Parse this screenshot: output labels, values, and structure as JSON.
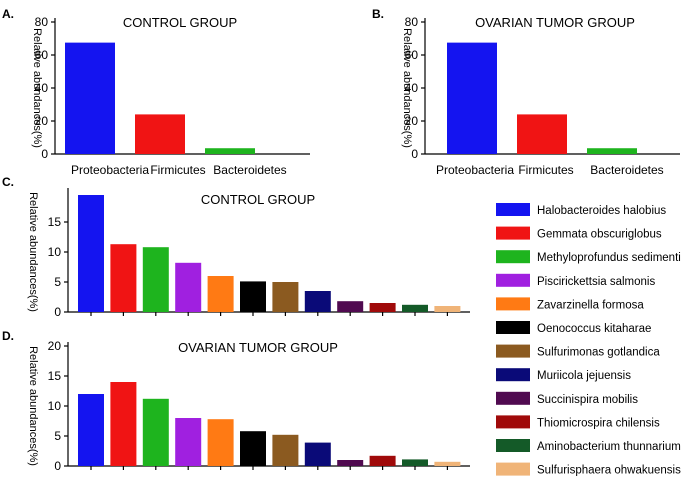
{
  "chart_data": [
    {
      "panel": "A.",
      "type": "bar",
      "title": "CONTROL GROUP",
      "ylabel": "Relative abundances(%)",
      "ylim": [
        0,
        80
      ],
      "yticks": [
        0,
        20,
        40,
        60,
        80
      ],
      "categories": [
        "Proteobacteria",
        "Firmicutes",
        "Bacteroidetes"
      ],
      "values": [
        67.5,
        24,
        3.5
      ],
      "colors": [
        "#1414f0",
        "#f01414",
        "#1eb41e"
      ]
    },
    {
      "panel": "B.",
      "type": "bar",
      "title": "OVARIAN TUMOR GROUP",
      "ylabel": "Relative abundances(%)",
      "ylim": [
        0,
        80
      ],
      "yticks": [
        0,
        20,
        40,
        60,
        80
      ],
      "categories": [
        "Proteobacteria",
        "Firmicutes",
        "Bacteroidetes"
      ],
      "values": [
        67.5,
        24,
        3.5
      ],
      "colors": [
        "#1414f0",
        "#f01414",
        "#1eb41e"
      ]
    },
    {
      "panel": "C.",
      "type": "bar",
      "title": "CONTROL GROUP",
      "ylabel": "Relative abundances(%)",
      "ylim": [
        0,
        20
      ],
      "yticks": [
        0,
        5,
        10,
        15
      ],
      "categories": [
        "Halobacteroides halobius",
        "Gemmata obscuriglobus",
        "Methyloprofundus sedimenti",
        "Piscirickettsia salmonis",
        "Zavarzinella formosa",
        "Oenococcus kitaharae",
        "Sulfurimonas gotlandica",
        "Muriicola jejuensis",
        "Succinispira mobilis",
        "Thiomicrospira chilensis",
        "Aminobacterium thunnarium",
        "Sulfurisphaera ohwakuensis"
      ],
      "values": [
        19.5,
        11.3,
        10.8,
        8.2,
        6.0,
        5.1,
        5.0,
        3.5,
        1.8,
        1.5,
        1.2,
        1.0
      ]
    },
    {
      "panel": "D.",
      "type": "bar",
      "title": "OVARIAN TUMOR GROUP",
      "ylabel": "Relative abundances(%)",
      "ylim": [
        0,
        20
      ],
      "yticks": [
        0,
        5,
        10,
        15,
        20
      ],
      "categories": [
        "Halobacteroides halobius",
        "Gemmata obscuriglobus",
        "Methyloprofundus sedimenti",
        "Piscirickettsia salmonis",
        "Zavarzinella formosa",
        "Oenococcus kitaharae",
        "Sulfurimonas gotlandica",
        "Muriicola jejuensis",
        "Succinispira mobilis",
        "Thiomicrospira chilensis",
        "Aminobacterium thunnarium",
        "Sulfurisphaera ohwakuensis"
      ],
      "values": [
        12.0,
        14.0,
        11.2,
        8.0,
        7.8,
        5.8,
        5.2,
        3.9,
        1.0,
        1.7,
        1.1,
        0.7
      ]
    }
  ],
  "legend": {
    "entries": [
      {
        "label": "Halobacteroides halobius",
        "color": "#1414f0"
      },
      {
        "label": "Gemmata obscuriglobus",
        "color": "#f01414"
      },
      {
        "label": "Methyloprofundus sedimenti",
        "color": "#1eb41e"
      },
      {
        "label": "Piscirickettsia salmonis",
        "color": "#a020e0"
      },
      {
        "label": "Zavarzinella formosa",
        "color": "#ff7a14"
      },
      {
        "label": "Oenococcus kitaharae",
        "color": "#000000"
      },
      {
        "label": "Sulfurimonas gotlandica",
        "color": "#8b5a20"
      },
      {
        "label": "Muriicola jejuensis",
        "color": "#0a0a78"
      },
      {
        "label": "Succinispira mobilis",
        "color": "#500a50"
      },
      {
        "label": "Thiomicrospira chilensis",
        "color": "#a00a0a"
      },
      {
        "label": "Aminobacterium thunnarium",
        "color": "#145a28"
      },
      {
        "label": "Sulfurisphaera ohwakuensis",
        "color": "#f0b478"
      }
    ]
  }
}
